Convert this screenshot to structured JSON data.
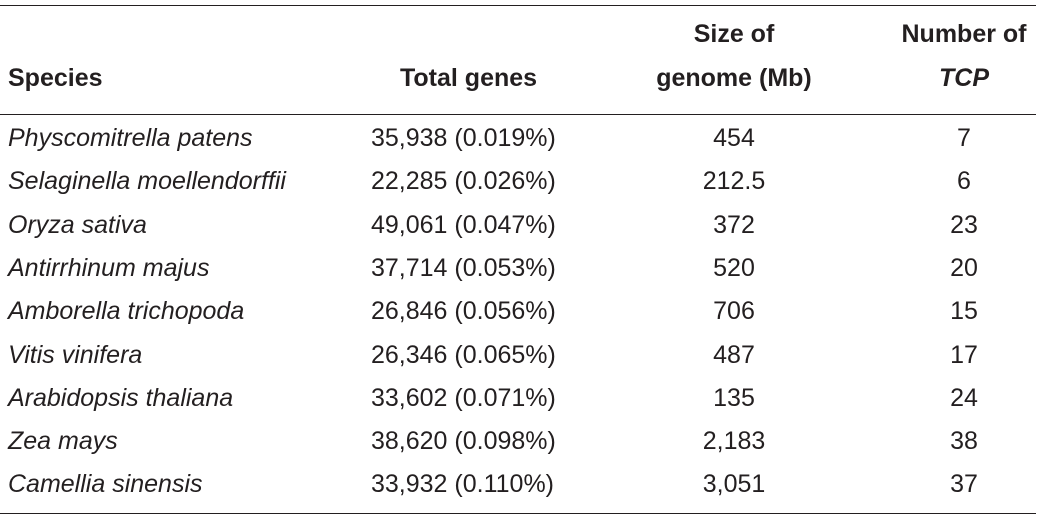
{
  "table": {
    "headers": {
      "species": "Species",
      "total_genes": "Total genes",
      "genome_size_line1": "Size of",
      "genome_size_line2": "genome (Mb)",
      "tcp_line1": "Number of",
      "tcp_line2": "TCP"
    },
    "rows": [
      {
        "species": "Physcomitrella patens",
        "total_genes": "35,938 (0.019%)",
        "genome_size": "454",
        "tcp": "7"
      },
      {
        "species": "Selaginella moellendorffii",
        "total_genes": "22,285 (0.026%)",
        "genome_size": "212.5",
        "tcp": "6"
      },
      {
        "species": "Oryza sativa",
        "total_genes": "49,061 (0.047%)",
        "genome_size": "372",
        "tcp": "23"
      },
      {
        "species": "Antirrhinum majus",
        "total_genes": "37,714 (0.053%)",
        "genome_size": "520",
        "tcp": "20"
      },
      {
        "species": "Amborella trichopoda",
        "total_genes": "26,846 (0.056%)",
        "genome_size": "706",
        "tcp": "15"
      },
      {
        "species": "Vitis vinifera",
        "total_genes": "26,346 (0.065%)",
        "genome_size": "487",
        "tcp": "17"
      },
      {
        "species": "Arabidopsis thaliana",
        "total_genes": "33,602 (0.071%)",
        "genome_size": "135",
        "tcp": "24"
      },
      {
        "species": "Zea mays",
        "total_genes": "38,620 (0.098%)",
        "genome_size": "2,183",
        "tcp": "38"
      },
      {
        "species": "Camellia sinensis",
        "total_genes": "33,932 (0.110%)",
        "genome_size": "3,051",
        "tcp": "37"
      }
    ]
  }
}
